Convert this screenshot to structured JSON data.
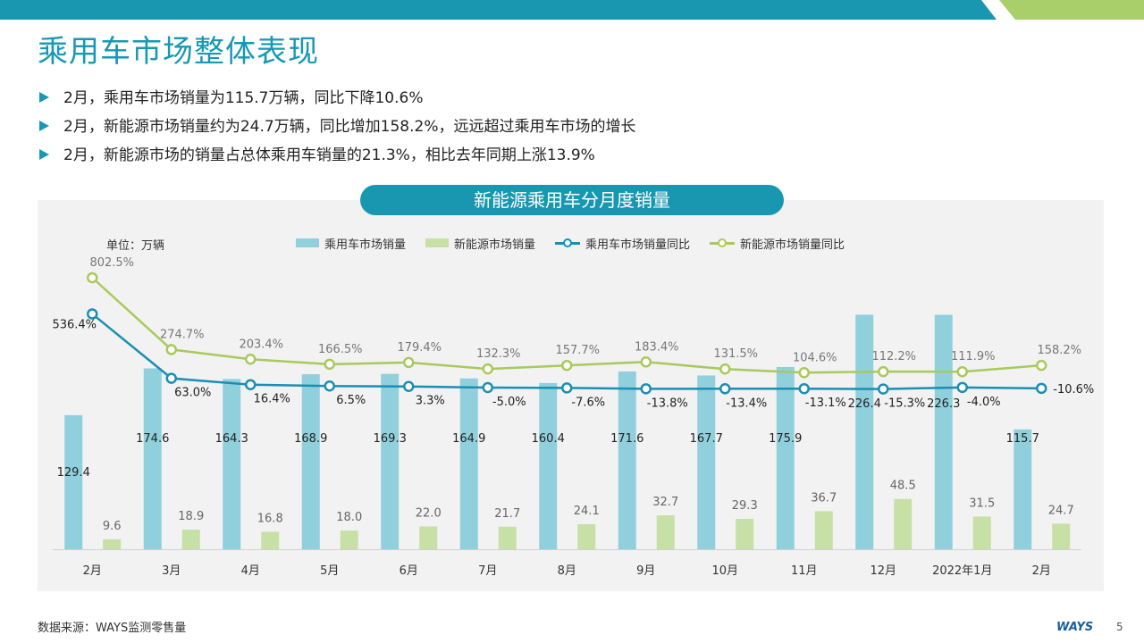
{
  "slide": {
    "title": "乘用车市场整体表现",
    "bullets": [
      "2月，乘用车市场销量为115.7万辆，同比下降10.6%",
      "2月，新能源市场销量约为24.7万辆，同比增加158.2%，远远超过乘用车市场的增长",
      "2月，新能源市场的销量占总体乘用车销量的21.3%，相比去年同期上涨13.9%"
    ],
    "source": "数据来源：WAYS监测零售量",
    "logo": "WAYS",
    "page_number": "5"
  },
  "colors": {
    "accent": "#1798b4",
    "header_bar": "#1a97b0",
    "header_green": "#a9cf6a",
    "bar_total": "#8fd0dc",
    "bar_nev": "#c6e0a6",
    "line_total": "#1a8fb3",
    "line_nev": "#a9c95c"
  },
  "chart_data": {
    "type": "bar",
    "title": "新能源乘用车分月度销量",
    "unit_label": "单位：万辆",
    "categories": [
      "2月",
      "3月",
      "4月",
      "5月",
      "6月",
      "7月",
      "8月",
      "9月",
      "10月",
      "11月",
      "12月",
      "2022年1月",
      "2月"
    ],
    "series": [
      {
        "name": "乘用车市场销量",
        "kind": "bar",
        "axis": "left",
        "values": [
          129.4,
          174.6,
          164.3,
          168.9,
          169.3,
          164.9,
          160.4,
          171.6,
          167.7,
          175.9,
          226.4,
          226.3,
          115.7
        ]
      },
      {
        "name": "新能源市场销量",
        "kind": "bar",
        "axis": "left",
        "values": [
          9.6,
          18.9,
          16.8,
          18.0,
          22.0,
          21.7,
          24.1,
          32.7,
          29.3,
          36.7,
          48.5,
          31.5,
          24.7
        ]
      },
      {
        "name": "乘用车市场销量同比",
        "kind": "line",
        "axis": "right",
        "values": [
          536.4,
          63.0,
          16.4,
          6.5,
          3.3,
          -5.0,
          -7.6,
          -13.8,
          -13.4,
          -13.1,
          -15.3,
          -4.0,
          -10.6
        ],
        "labels": [
          "536.4%",
          "63.0%",
          "16.4%",
          "6.5%",
          "3.3%",
          "-5.0%",
          "-7.6%",
          "-13.8%",
          "-13.4%",
          "-13.1%",
          "-15.3%",
          "-4.0%",
          "-10.6%"
        ]
      },
      {
        "name": "新能源市场销量同比",
        "kind": "line",
        "axis": "right",
        "values": [
          802.5,
          274.7,
          203.4,
          166.5,
          179.4,
          132.3,
          157.7,
          183.4,
          131.5,
          104.6,
          112.2,
          111.9,
          158.2
        ],
        "labels": [
          "802.5%",
          "274.7%",
          "203.4%",
          "166.5%",
          "179.4%",
          "132.3%",
          "157.7%",
          "183.4%",
          "131.5%",
          "104.6%",
          "112.2%",
          "111.9%",
          "158.2%"
        ]
      }
    ],
    "ylim": [
      0,
      250
    ],
    "y2lim": [
      -600,
      1000
    ],
    "grid": false,
    "legend": "top"
  }
}
